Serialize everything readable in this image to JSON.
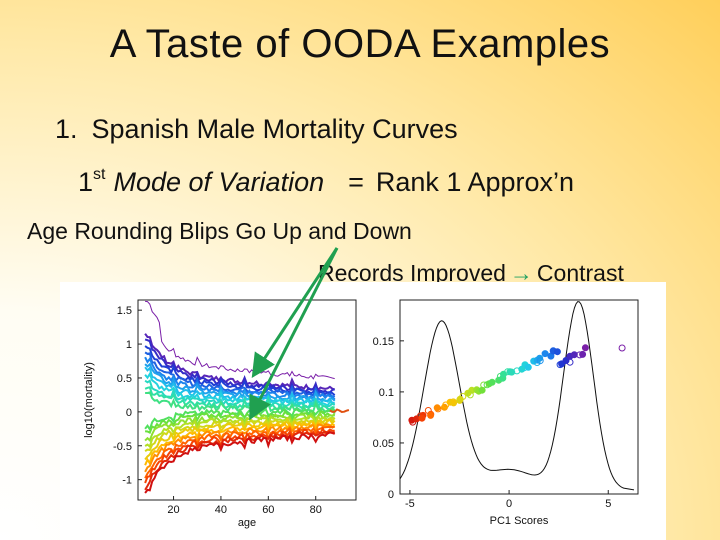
{
  "slide": {
    "title": "A Taste of OODA Examples",
    "bullet_number": "1.",
    "bullet_text": "Spanish Male Mortality Curves",
    "sub_prefix": "1",
    "sub_sup": "st",
    "sub_mode": "Mode of Variation",
    "sub_eq": "=",
    "sub_rank": "Rank 1 Approx’n",
    "note1": "Age Rounding Blips Go Up and Down",
    "note2_a": "Records Improved",
    "note2_arrow": "→",
    "note2_b": "Contrast"
  },
  "chart_data": [
    {
      "type": "line",
      "title": "",
      "xlabel": "age",
      "ylabel": "log10(mortality)",
      "xticks": [
        "20",
        "40",
        "60",
        "80"
      ],
      "yticks": [
        "1.5",
        "1",
        "0.5",
        "0",
        "-0.5",
        "-1"
      ],
      "xlim": [
        5,
        97
      ],
      "ylim": [
        -1.3,
        1.65
      ],
      "series_count": 24,
      "colors": [
        "#7a1fa8",
        "#2030d0",
        "#1c88ee",
        "#20d0e8",
        "#30e0a0",
        "#60e040",
        "#c0e020",
        "#ffc000",
        "#ff5000",
        "#d01010"
      ]
    },
    {
      "type": "line",
      "title": "",
      "xlabel": "PC1 Scores",
      "ylabel": "",
      "xticks": [
        "-5",
        "0",
        "5"
      ],
      "yticks": [
        "0",
        "0.05",
        "0.1",
        "0.15"
      ],
      "xlim": [
        -5.5,
        6.5
      ],
      "ylim": [
        0,
        0.19
      ]
    }
  ],
  "icons": [
    "arrow-right-icon"
  ]
}
